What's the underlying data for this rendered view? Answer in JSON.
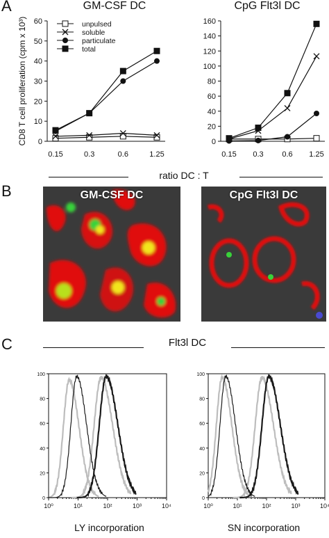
{
  "panels": {
    "A": "A",
    "B": "B",
    "C": "C"
  },
  "panel_a": {
    "left_title": "GM-CSF DC",
    "right_title": "CpG Flt3l DC",
    "xlabel": "ratio DC : T"
  },
  "panel_b": {
    "left_label": "GM-CSF DC",
    "right_label": "CpG Flt3l DC"
  },
  "panel_c": {
    "header": "Flt3l DC",
    "left_xlabel": "LY incorporation",
    "right_xlabel": "SN incorporation"
  },
  "colors": {
    "micro_red": "#e01010",
    "micro_green": "#39d23a",
    "micro_yellow": "#f2e51a",
    "micro_bg": "#3a3a3a",
    "hist_black": "#1a1a1a",
    "hist_gray": "#bdbdbd"
  },
  "chart_data": [
    {
      "type": "line",
      "panel": "A-left",
      "title": "GM-CSF DC",
      "ylabel": "CD8 T cell proliferation (cpm x 10³)",
      "categories": [
        "0.15",
        "0.3",
        "0.6",
        "1.25"
      ],
      "ylim": [
        0,
        60
      ],
      "yticks": [
        "0",
        "10",
        "20",
        "30",
        "40",
        "50",
        "60"
      ],
      "series": [
        {
          "name": "unpulsed",
          "marker": "open-square",
          "values": [
            1.5,
            2,
            2.5,
            2
          ]
        },
        {
          "name": "soluble",
          "marker": "x",
          "values": [
            2.5,
            3,
            4,
            3
          ]
        },
        {
          "name": "particulate",
          "marker": "circle",
          "values": [
            5,
            14,
            30,
            40
          ]
        },
        {
          "name": "total",
          "marker": "filled-square",
          "values": [
            5.5,
            14,
            35,
            45
          ]
        }
      ]
    },
    {
      "type": "line",
      "panel": "A-right",
      "title": "CpG Flt3l DC",
      "categories": [
        "0.15",
        "0.3",
        "0.6",
        "1.25"
      ],
      "ylim": [
        0,
        160
      ],
      "yticks": [
        "0",
        "20",
        "40",
        "60",
        "80",
        "100",
        "120",
        "140",
        "160"
      ],
      "series": [
        {
          "name": "unpulsed",
          "marker": "open-square",
          "values": [
            3,
            3,
            3,
            4
          ]
        },
        {
          "name": "soluble",
          "marker": "x",
          "values": [
            3,
            14,
            44,
            113
          ]
        },
        {
          "name": "particulate",
          "marker": "circle",
          "values": [
            0.5,
            1,
            6,
            37
          ]
        },
        {
          "name": "total",
          "marker": "filled-square",
          "values": [
            4,
            18,
            64,
            156
          ]
        }
      ]
    },
    {
      "type": "area",
      "panel": "C-left",
      "xlabel": "LY incorporation",
      "x_scale": "log",
      "xticks": [
        "10⁰",
        "10¹",
        "10²",
        "10³",
        "10⁴"
      ],
      "yticks": [
        "0",
        "20",
        "40",
        "60",
        "80",
        "100"
      ],
      "ylim": [
        0,
        100
      ],
      "series": [
        {
          "color": "gray",
          "peak_x": 5,
          "peak_y": 95
        },
        {
          "color": "black",
          "peak_x": 9,
          "peak_y": 98
        },
        {
          "color": "gray",
          "peak_x": 60,
          "peak_y": 97
        },
        {
          "color": "black",
          "peak_x": 90,
          "peak_y": 98
        }
      ]
    },
    {
      "type": "area",
      "panel": "C-right",
      "xlabel": "SN incorporation",
      "x_scale": "log",
      "xticks": [
        "10⁰",
        "10¹",
        "10²",
        "10³",
        "10⁴"
      ],
      "yticks": [
        "0",
        "20",
        "40",
        "60",
        "80",
        "100"
      ],
      "ylim": [
        0,
        100
      ],
      "series": [
        {
          "color": "gray",
          "peak_x": 3,
          "peak_y": 97
        },
        {
          "color": "black",
          "peak_x": 4,
          "peak_y": 98
        },
        {
          "color": "gray",
          "peak_x": 70,
          "peak_y": 97
        },
        {
          "color": "black",
          "peak_x": 120,
          "peak_y": 98
        }
      ]
    }
  ]
}
